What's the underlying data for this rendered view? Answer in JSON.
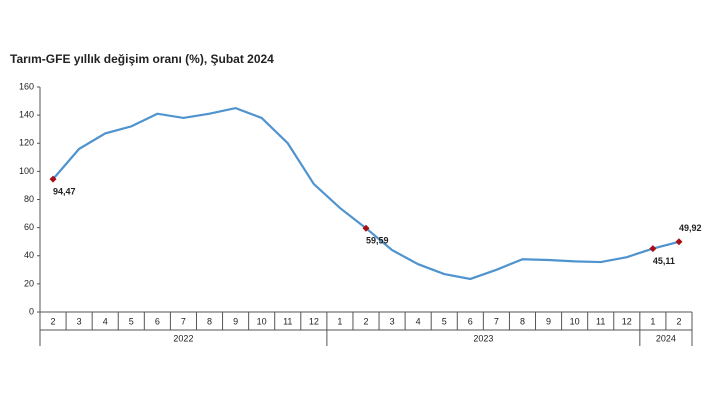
{
  "chart_data": {
    "type": "line",
    "title": "Tarım-GFE yıllık değişim oranı (%), Şubat 2024",
    "groups": [
      {
        "label": "2022",
        "categories": [
          "2",
          "3",
          "4",
          "5",
          "6",
          "7",
          "8",
          "9",
          "10",
          "11",
          "12"
        ]
      },
      {
        "label": "2023",
        "categories": [
          "1",
          "2",
          "3",
          "4",
          "5",
          "6",
          "7",
          "8",
          "9",
          "10",
          "11",
          "12"
        ]
      },
      {
        "label": "2024",
        "categories": [
          "1",
          "2"
        ]
      }
    ],
    "series": [
      {
        "color": "#4f93cf",
        "marker_color": "#a50f15",
        "values": [
          94.47,
          116,
          127,
          132,
          141,
          138,
          141,
          145,
          138,
          120,
          91,
          74,
          59.59,
          44,
          34,
          27,
          23.5,
          30,
          37.5,
          37,
          36,
          35.5,
          39,
          45.11,
          49.92
        ],
        "value_labels": [
          "94,47",
          null,
          null,
          null,
          null,
          null,
          null,
          null,
          null,
          null,
          null,
          null,
          "59,59",
          null,
          null,
          null,
          null,
          null,
          null,
          null,
          null,
          null,
          null,
          "45,11",
          "49,92"
        ]
      }
    ],
    "ylim": [
      0,
      160
    ],
    "yticks": [
      0,
      20,
      40,
      60,
      80,
      100,
      120,
      140,
      160
    ],
    "grid": false
  }
}
